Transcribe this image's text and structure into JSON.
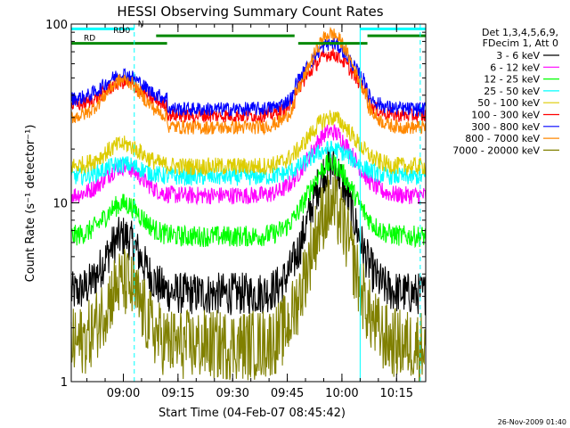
{
  "footer": {
    "timestamp": "26-Nov-2009 01:40"
  },
  "chart_data": {
    "type": "line",
    "title": "HESSI Observing Summary Count Rates",
    "xlabel": "Start Time (04-Feb-07 08:45:42)",
    "ylabel": "Count Rate (s⁻¹ detector⁻¹)",
    "y_scale": "log",
    "ylim": [
      1,
      100
    ],
    "xlim": [
      "08:45:42",
      "10:23:00"
    ],
    "x_ticks": [
      "09:00",
      "09:15",
      "09:30",
      "09:45",
      "10:00",
      "10:15"
    ],
    "y_ticks": [
      "1",
      "10",
      "100"
    ],
    "legend": {
      "placement": "right",
      "header": [
        "Det 1,3,4,5,6,9,",
        "FDecim 1, Att 0"
      ]
    },
    "flags": [
      {
        "name": "N",
        "value": 94,
        "color": "#00ffff",
        "segments": [
          [
            "08:45:42",
            "09:03:00"
          ],
          [
            "10:05:00",
            "10:23:00"
          ]
        ]
      },
      {
        "name": "RD0",
        "value": 86,
        "color": "#008800",
        "segments": [
          [
            "09:09:00",
            "09:47:00"
          ],
          [
            "10:07:00",
            "10:23:00"
          ]
        ]
      },
      {
        "name": "RD",
        "value": 78,
        "color": "#008800",
        "segments": [
          [
            "08:45:42",
            "09:12:00"
          ],
          [
            "09:48:00",
            "10:07:00"
          ]
        ]
      }
    ],
    "vlines": [
      {
        "time": "09:03:00",
        "color": "#00ffff",
        "style": "dashed"
      },
      {
        "time": "10:05:00",
        "color": "#00ffff",
        "style": "solid"
      },
      {
        "time": "10:21:30",
        "color": "#00ffff",
        "style": "dashed"
      },
      {
        "time": "08:45:42",
        "color": "#00ffff",
        "style": "solid"
      }
    ],
    "series": [
      {
        "name": "3 - 6 keV",
        "color": "#000000",
        "base": 3.1,
        "peak": 16,
        "noise": 0.12
      },
      {
        "name": "6 - 12 keV",
        "color": "#ff00ff",
        "base": 11,
        "peak": 25,
        "noise": 0.05
      },
      {
        "name": "12 - 25 keV",
        "color": "#00ff00",
        "base": 6.5,
        "peak": 16.5,
        "noise": 0.06
      },
      {
        "name": "25 - 50 keV",
        "color": "#00ffff",
        "base": 14,
        "peak": 20,
        "noise": 0.05
      },
      {
        "name": "50 - 100 keV",
        "color": "#ddcc00",
        "base": 16,
        "peak": 30,
        "noise": 0.05
      },
      {
        "name": "100 - 300 keV",
        "color": "#ff0000",
        "base": 35,
        "peak": 68,
        "noise": 0.04
      },
      {
        "name": "300 - 800 keV",
        "color": "#0000ff",
        "base": 38,
        "peak": 78,
        "noise": 0.04
      },
      {
        "name": "800 - 7000 keV",
        "color": "#ff8800",
        "base": 30,
        "peak": 88,
        "noise": 0.04
      },
      {
        "name": "7000 - 20000 keV",
        "color": "#808000",
        "base": 1.6,
        "peak": 9.5,
        "noise": 0.2
      }
    ]
  }
}
